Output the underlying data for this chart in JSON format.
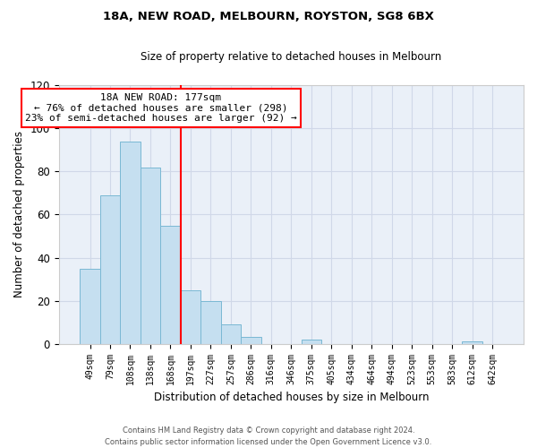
{
  "title": "18A, NEW ROAD, MELBOURN, ROYSTON, SG8 6BX",
  "subtitle": "Size of property relative to detached houses in Melbourn",
  "xlabel": "Distribution of detached houses by size in Melbourn",
  "ylabel": "Number of detached properties",
  "bar_labels": [
    "49sqm",
    "79sqm",
    "108sqm",
    "138sqm",
    "168sqm",
    "197sqm",
    "227sqm",
    "257sqm",
    "286sqm",
    "316sqm",
    "346sqm",
    "375sqm",
    "405sqm",
    "434sqm",
    "464sqm",
    "494sqm",
    "523sqm",
    "553sqm",
    "583sqm",
    "612sqm",
    "642sqm"
  ],
  "bar_values": [
    35,
    69,
    94,
    82,
    55,
    25,
    20,
    9,
    3,
    0,
    0,
    2,
    0,
    0,
    0,
    0,
    0,
    0,
    0,
    1,
    0
  ],
  "bar_color": "#c5dff0",
  "bar_edge_color": "#7ab8d4",
  "vline_x": 4.5,
  "vline_color": "red",
  "annotation_title": "18A NEW ROAD: 177sqm",
  "annotation_line1": "← 76% of detached houses are smaller (298)",
  "annotation_line2": "23% of semi-detached houses are larger (92) →",
  "annotation_box_color": "white",
  "annotation_box_edge": "red",
  "ylim": [
    0,
    120
  ],
  "yticks": [
    0,
    20,
    40,
    60,
    80,
    100,
    120
  ],
  "footer1": "Contains HM Land Registry data © Crown copyright and database right 2024.",
  "footer2": "Contains public sector information licensed under the Open Government Licence v3.0.",
  "bg_color": "white",
  "grid_color": "#d0d8e8"
}
